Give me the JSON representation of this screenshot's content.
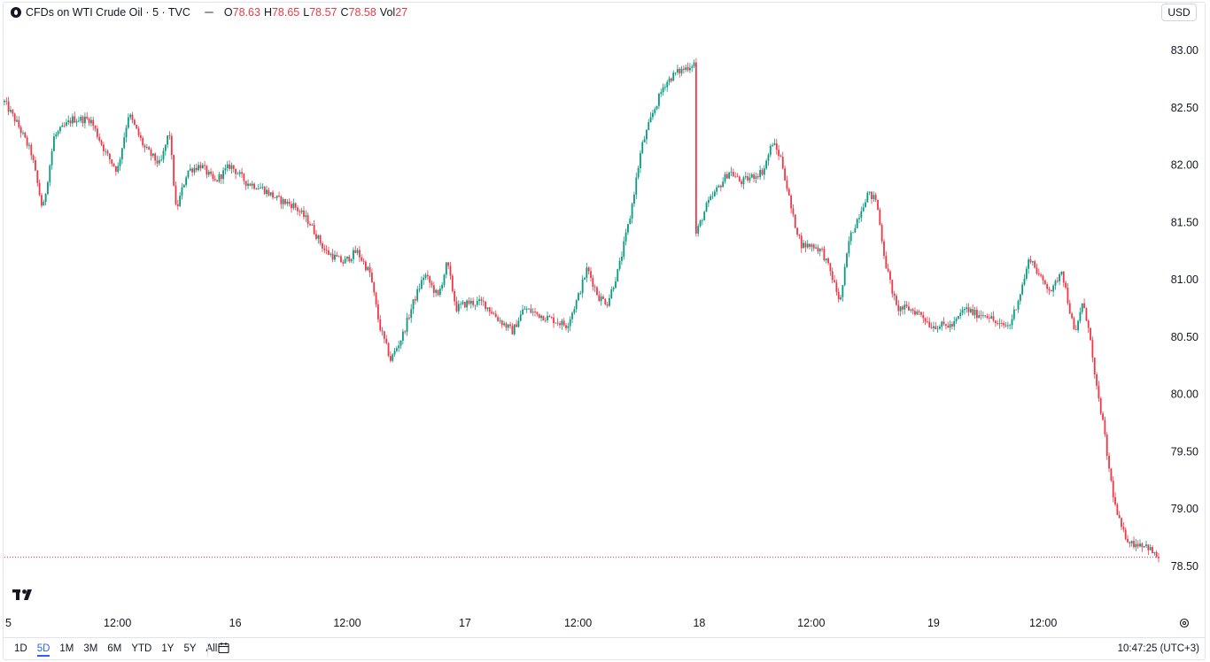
{
  "legend": {
    "symbol_title": "CFDs on WTI Crude Oil · 5 · TVC",
    "open_key": "O",
    "open_value": "78.63",
    "high_key": "H",
    "high_value": "78.65",
    "low_key": "L",
    "low_value": "78.57",
    "close_key": "C",
    "close_value": "78.58",
    "vol_key": "Vol",
    "vol_value": "27"
  },
  "currency": "USD",
  "bottombar": {
    "ranges": [
      "1D",
      "5D",
      "1M",
      "3M",
      "6M",
      "YTD",
      "1Y",
      "5Y",
      "All"
    ],
    "active_range": "5D",
    "clock": "10:47:25 (UTC+3)"
  },
  "colors": {
    "up": "#089981",
    "down": "#f23645",
    "last_price_line": "#f23645"
  },
  "chart_data": {
    "type": "candlestick",
    "title": "CFDs on WTI Crude Oil · 5 · TVC",
    "y_ticks": [
      "83.00",
      "82.50",
      "82.00",
      "81.50",
      "81.00",
      "80.50",
      "80.00",
      "79.50",
      "79.00",
      "78.50"
    ],
    "x_ticks": [
      "5",
      "12:00",
      "16",
      "12:00",
      "17",
      "12:00",
      "18",
      "12:00",
      "19",
      "12:00"
    ],
    "ylim": [
      78.35,
      83.1
    ],
    "last_price": 78.58,
    "close_path": [
      [
        0,
        82.55
      ],
      [
        0.6,
        82.35
      ],
      [
        1.2,
        82.1
      ],
      [
        1.7,
        81.6
      ],
      [
        2.2,
        82.25
      ],
      [
        3,
        82.4
      ],
      [
        3.8,
        82.4
      ],
      [
        4.5,
        82.1
      ],
      [
        5.0,
        81.95
      ],
      [
        5.5,
        82.45
      ],
      [
        6.2,
        82.15
      ],
      [
        6.9,
        82.0
      ],
      [
        7.3,
        82.3
      ],
      [
        7.6,
        81.6
      ],
      [
        8.1,
        81.95
      ],
      [
        8.7,
        82.0
      ],
      [
        9.3,
        81.85
      ],
      [
        10,
        82.0
      ],
      [
        10.7,
        81.85
      ],
      [
        11.4,
        81.8
      ],
      [
        12.1,
        81.7
      ],
      [
        12.8,
        81.65
      ],
      [
        13.5,
        81.5
      ],
      [
        14.2,
        81.25
      ],
      [
        15,
        81.15
      ],
      [
        15.6,
        81.25
      ],
      [
        16.2,
        81.05
      ],
      [
        16.6,
        80.6
      ],
      [
        17.1,
        80.3
      ],
      [
        17.6,
        80.5
      ],
      [
        18.1,
        80.8
      ],
      [
        18.6,
        81.05
      ],
      [
        19.2,
        80.85
      ],
      [
        19.6,
        81.15
      ],
      [
        20.0,
        80.75
      ],
      [
        20.5,
        80.8
      ],
      [
        21.2,
        80.8
      ],
      [
        21.9,
        80.65
      ],
      [
        22.5,
        80.55
      ],
      [
        23.0,
        80.75
      ],
      [
        23.6,
        80.7
      ],
      [
        24.3,
        80.65
      ],
      [
        24.9,
        80.6
      ],
      [
        25.4,
        80.85
      ],
      [
        25.8,
        81.1
      ],
      [
        26.3,
        80.85
      ],
      [
        26.7,
        80.8
      ],
      [
        27.2,
        81.1
      ],
      [
        27.7,
        81.55
      ],
      [
        28.2,
        82.15
      ],
      [
        28.7,
        82.45
      ],
      [
        29.2,
        82.7
      ],
      [
        29.7,
        82.8
      ],
      [
        30.2,
        82.85
      ],
      [
        30.6,
        82.9
      ],
      [
        30.62,
        81.4
      ],
      [
        31.1,
        81.65
      ],
      [
        31.6,
        81.8
      ],
      [
        32.1,
        81.95
      ],
      [
        32.6,
        81.85
      ],
      [
        33.1,
        81.9
      ],
      [
        33.6,
        81.95
      ],
      [
        34.0,
        82.2
      ],
      [
        34.4,
        82.05
      ],
      [
        34.9,
        81.55
      ],
      [
        35.3,
        81.3
      ],
      [
        35.8,
        81.3
      ],
      [
        36.2,
        81.25
      ],
      [
        36.6,
        81.05
      ],
      [
        37.0,
        80.8
      ],
      [
        37.4,
        81.35
      ],
      [
        37.8,
        81.55
      ],
      [
        38.2,
        81.75
      ],
      [
        38.6,
        81.7
      ],
      [
        39.0,
        81.15
      ],
      [
        39.5,
        80.75
      ],
      [
        40.0,
        80.75
      ],
      [
        40.6,
        80.7
      ],
      [
        41.0,
        80.6
      ],
      [
        41.5,
        80.6
      ],
      [
        42.0,
        80.6
      ],
      [
        42.5,
        80.75
      ],
      [
        43.0,
        80.7
      ],
      [
        43.5,
        80.7
      ],
      [
        44.0,
        80.6
      ],
      [
        44.5,
        80.6
      ],
      [
        45.0,
        80.9
      ],
      [
        45.4,
        81.2
      ],
      [
        45.9,
        81.0
      ],
      [
        46.4,
        80.9
      ],
      [
        46.8,
        81.1
      ],
      [
        47.1,
        80.8
      ],
      [
        47.4,
        80.5
      ],
      [
        47.7,
        80.8
      ],
      [
        48.0,
        80.6
      ],
      [
        48.3,
        80.1
      ],
      [
        48.6,
        79.8
      ],
      [
        48.9,
        79.35
      ],
      [
        49.2,
        79.0
      ],
      [
        49.5,
        78.8
      ],
      [
        49.9,
        78.7
      ],
      [
        50.3,
        78.7
      ],
      [
        50.6,
        78.68
      ],
      [
        50.9,
        78.6
      ],
      [
        51.1,
        78.58
      ]
    ]
  }
}
